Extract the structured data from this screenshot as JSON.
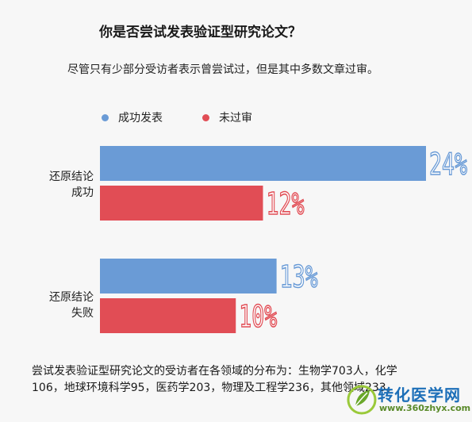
{
  "chart_data": {
    "type": "bar",
    "orientation": "horizontal",
    "title": "你是否尝试发表验证型研究论文？",
    "subtitle": "尽管只有少部分受访者表示曾尝试过，但是其中多数文章过审。",
    "categories": [
      "还原结论\n成功",
      "还原结论\n失败"
    ],
    "series": [
      {
        "name": "成功发表",
        "color": "#6a9bd6",
        "values": [
          24,
          13
        ]
      },
      {
        "name": "未过审",
        "color": "#e14d55",
        "values": [
          12,
          10
        ]
      }
    ],
    "value_labels": [
      [
        "24%",
        "12%"
      ],
      [
        "13%",
        "10%"
      ]
    ],
    "unit": "%",
    "xlim": [
      0,
      24
    ],
    "legend_position": "top-left",
    "grid": false
  },
  "footnote": "尝试发表验证型研究论文的受访者在各领域的分布为：生物学703人，化学106，地球环境科学95，医药学203，物理及工程学236，其他领域233。",
  "watermark": {
    "text": "转化医学网",
    "url": "www.360zhyx.com",
    "icon": "leaf-logo-icon"
  }
}
